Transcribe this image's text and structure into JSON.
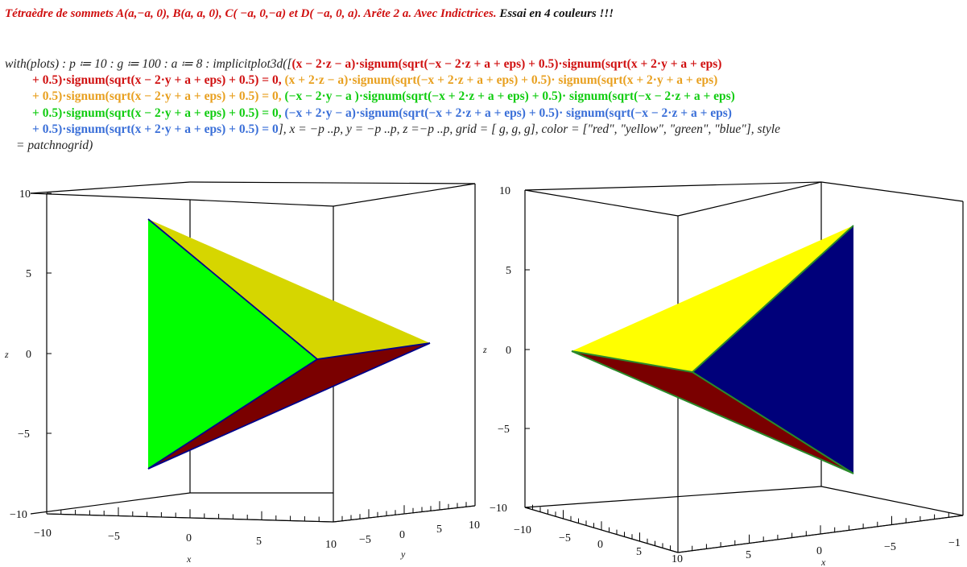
{
  "title": {
    "part1": "Tétraèdre de sommets A(a,−a, 0), B(a, a, 0), C( −a, 0,−a)",
    "part2": " et ",
    "part3": "D( −a, 0, a). Arête 2 a. Avec Indictrices.",
    "part4": " Essai en 4 couleurs  !!!"
  },
  "code": {
    "l1_pre": "with(plots) : p ≔ 10 : g ≔ 100 : a ≔ 8 : implicitplot3d([",
    "l1_red": "(x − 2·z − a)·signum(sqrt(−x − 2·z + a + eps) + 0.5)·signum(sqrt(x + 2·y + a + eps)",
    "l2_red": "+ 0.5)·signum(sqrt(x − 2·y + a + eps) + 0.5) = 0,",
    "l2_orange": " (x + 2·z − a)·signum(sqrt(−x + 2·z + a + eps) + 0.5)· signum(sqrt(x + 2·y + a + eps)",
    "l3_orange": "+ 0.5)·signum(sqrt(x − 2·y + a + eps) + 0.5) = 0,",
    "l3_green": " (−x − 2·y − a )·signum(sqrt(−x + 2·z + a + eps) + 0.5)· signum(sqrt(−x − 2·z + a + eps)",
    "l4_green": "+ 0.5)·signum(sqrt(x − 2·y + a + eps) + 0.5) = 0,",
    "l4_blue": " (−x + 2·y − a)·signum(sqrt(−x + 2·z + a + eps) + 0.5)· signum(sqrt(−x − 2·z + a + eps)",
    "l5_blue": "+ 0.5)·signum(sqrt(x + 2·y + a + eps) + 0.5) = 0",
    "l5_rest": "], x = −p ..p, y = −p ..p, z =−p ..p, grid = [ g, g, g], color = [\"red\", \"yellow\", \"green\", \"blue\"], style",
    "l6": "= patchnogrid)"
  },
  "colors": {
    "red_face": "#7a0000",
    "yellow_face_left": "#d6d600",
    "yellow_face_right": "#ffff00",
    "green_face": "#00ff00",
    "blue_face": "#00007a",
    "edge": "#00008b",
    "edge_green": "#2a8a2a",
    "code_red": "#d01010",
    "code_orange": "#e8a020",
    "code_green": "#10cc10",
    "code_blue": "#3a6fd8"
  },
  "plot_left": {
    "z_ticks": [
      "10",
      "5",
      "0",
      "−5",
      "−10"
    ],
    "z_label": "z",
    "x_ticks": [
      "−10",
      "−5",
      "0",
      "5",
      "10"
    ],
    "x_label": "x",
    "y_ticks": [
      "−5",
      "0",
      "5",
      "10"
    ],
    "y_label": "y"
  },
  "plot_right": {
    "z_ticks": [
      "10",
      "5",
      "0",
      "−5",
      "−10"
    ],
    "z_label": "z",
    "front_ticks": [
      "−10",
      "−5",
      "0",
      "5",
      "10"
    ],
    "side_ticks": [
      "5",
      "0",
      "−5",
      "−1"
    ],
    "side_label": "x"
  }
}
